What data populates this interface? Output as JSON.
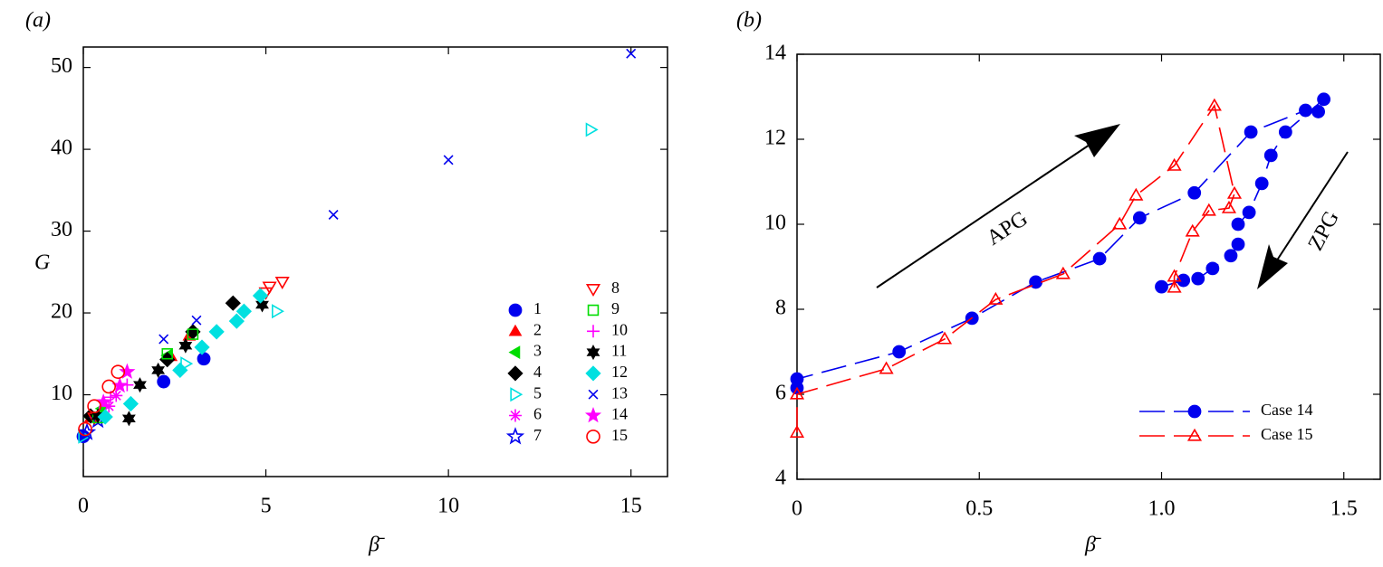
{
  "chart_data": [
    {
      "type": "scatter",
      "panel_label": "(a)",
      "x_label": "β̄",
      "y_label": "G",
      "xlim": [
        0,
        16
      ],
      "xticks": [
        0,
        5,
        10,
        15
      ],
      "ylim": [
        0,
        52.5
      ],
      "yticks": [
        10,
        20,
        30,
        40,
        50
      ],
      "legend": "lower right",
      "series": [
        {
          "name": "1",
          "color": "#0000ee",
          "marker": "circle",
          "x": [
            2.2,
            3.3,
            0.0
          ],
          "values": [
            11.6,
            14.4,
            4.9
          ]
        },
        {
          "name": "2",
          "color": "#ff0000",
          "marker": "triangle-up",
          "x": [
            2.9,
            2.4,
            0.2
          ],
          "values": [
            17.2,
            14.7,
            7.2
          ]
        },
        {
          "name": "3",
          "color": "#00dd00",
          "marker": "triangle-left",
          "x": [
            0.2,
            2.3,
            0.5
          ],
          "values": [
            7.2,
            14.8,
            8.3
          ]
        },
        {
          "name": "4",
          "color": "#000000",
          "marker": "diamond",
          "x": [
            4.1,
            3.0,
            2.3,
            0.2
          ],
          "values": [
            21.2,
            17.7,
            14.3,
            7.4
          ]
        },
        {
          "name": "5",
          "color": "#00e0e0",
          "marker": "triangle-right-open",
          "x": [
            13.9,
            5.3,
            2.8,
            0.0
          ],
          "values": [
            42.4,
            20.2,
            13.8,
            4.9
          ]
        },
        {
          "name": "6",
          "color": "#ff00ff",
          "marker": "asterisk",
          "x": [
            0.7,
            0.9
          ],
          "values": [
            8.6,
            9.9
          ]
        },
        {
          "name": "7",
          "color": "#0000ee",
          "marker": "star-open",
          "x": [
            0.1,
            0.4
          ],
          "values": [
            5.4,
            6.9
          ]
        },
        {
          "name": "8",
          "color": "#ff0000",
          "marker": "triangle-down-open",
          "x": [
            5.45,
            5.1,
            5.0,
            0.3
          ],
          "values": [
            23.8,
            23.2,
            22.5,
            7.2
          ]
        },
        {
          "name": "9",
          "color": "#00dd00",
          "marker": "square-open",
          "x": [
            2.3,
            3.0,
            0.4
          ],
          "values": [
            15.0,
            17.4,
            7.2
          ]
        },
        {
          "name": "10",
          "color": "#ff00ff",
          "marker": "plus",
          "x": [
            0.75,
            1.2
          ],
          "values": [
            9.7,
            11.2
          ]
        },
        {
          "name": "11",
          "color": "#000000",
          "marker": "hexagram",
          "x": [
            1.25,
            1.55,
            2.05,
            2.8,
            4.9,
            0.4
          ],
          "values": [
            7.1,
            11.2,
            13.0,
            16.0,
            21.0,
            7.4
          ]
        },
        {
          "name": "12",
          "color": "#00e0e0",
          "marker": "diamond",
          "x": [
            0.6,
            1.3,
            2.65,
            3.25,
            3.65,
            4.2,
            4.4,
            4.85
          ],
          "values": [
            7.3,
            8.9,
            13.0,
            15.8,
            17.7,
            19.0,
            20.2,
            22.1
          ]
        },
        {
          "name": "13",
          "color": "#0000ee",
          "marker": "x",
          "x": [
            15.0,
            10.0,
            6.85,
            2.2,
            3.1
          ],
          "values": [
            51.7,
            38.7,
            32.0,
            16.8,
            19.1
          ]
        },
        {
          "name": "14",
          "color": "#ff00ff",
          "marker": "star",
          "x": [
            1.2,
            1.0,
            0.55
          ],
          "values": [
            12.8,
            11.1,
            9.1
          ]
        },
        {
          "name": "15",
          "color": "#ff0000",
          "marker": "circle-open",
          "x": [
            0.95,
            0.7,
            0.3,
            0.05
          ],
          "values": [
            12.8,
            11.0,
            8.6,
            5.8
          ]
        }
      ]
    },
    {
      "type": "line",
      "panel_label": "(b)",
      "x_label": "β̄",
      "xlim": [
        0,
        1.6
      ],
      "xticks": [
        0,
        0.5,
        {
          "value": 1,
          "label": "1.0"
        },
        1.5
      ],
      "ylim": [
        4,
        14
      ],
      "yticks": [
        4,
        6,
        8,
        10,
        12,
        14
      ],
      "legend": "lower right",
      "annotations": [
        {
          "text": "APG"
        },
        {
          "text": "ZPG"
        }
      ],
      "series": [
        {
          "name": "Case 14",
          "color": "#0000ee",
          "marker": "circle",
          "linestyle": "dashed",
          "x": [
            0,
            0,
            0.28,
            0.48,
            0.655,
            0.83,
            0.94,
            1.09,
            1.245,
            1.395,
            1.43,
            1.445,
            1.34,
            1.3,
            1.275,
            1.24,
            1.21,
            1.21,
            1.19,
            1.14,
            1.1,
            1.06,
            1.0
          ],
          "values": [
            6.15,
            6.36,
            7.0,
            7.79,
            8.64,
            9.19,
            10.15,
            10.74,
            12.17,
            12.68,
            12.65,
            12.94,
            12.17,
            11.62,
            10.96,
            10.28,
            10.0,
            9.53,
            9.26,
            8.96,
            8.72,
            8.68,
            8.53
          ]
        },
        {
          "name": "Case 15",
          "color": "#ff0000",
          "marker": "triangle-up-open",
          "linestyle": "dashed",
          "x": [
            0,
            0,
            0.245,
            0.405,
            0.545,
            0.73,
            0.885,
            0.93,
            1.035,
            1.145,
            1.2,
            1.185,
            1.13,
            1.085,
            1.035,
            1.035
          ],
          "values": [
            5.1,
            6.0,
            6.6,
            7.3,
            8.23,
            8.83,
            10.0,
            10.68,
            11.38,
            12.79,
            10.72,
            10.38,
            10.32,
            9.83,
            8.77,
            8.51
          ]
        }
      ]
    }
  ]
}
